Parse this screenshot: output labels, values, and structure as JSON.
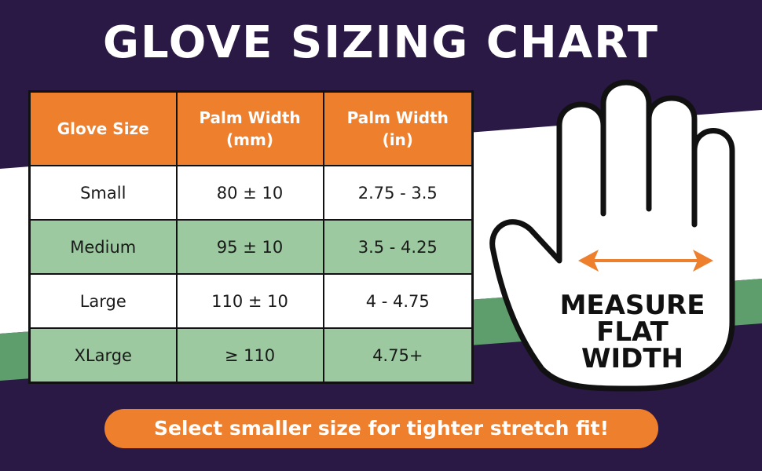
{
  "title": "GLOVE SIZING CHART",
  "table": {
    "headers": [
      "Glove Size",
      "Palm Width (mm)",
      "Palm Width (in)"
    ],
    "rows": [
      [
        "Small",
        "80 ± 10",
        "2.75 - 3.5"
      ],
      [
        "Medium",
        "95 ± 10",
        "3.5 - 4.25"
      ],
      [
        "Large",
        "110 ± 10",
        "4 - 4.75"
      ],
      [
        "XLarge",
        "≥ 110",
        "4.75+"
      ]
    ]
  },
  "hand_label": [
    "MEASURE",
    "FLAT",
    "WIDTH"
  ],
  "footer": "Select smaller size for tighter stretch fit!"
}
